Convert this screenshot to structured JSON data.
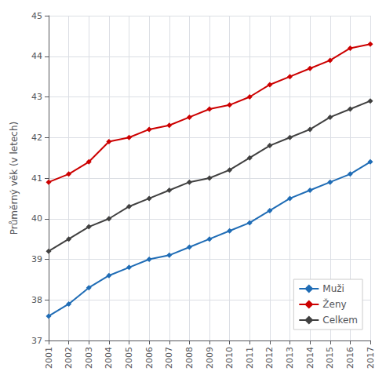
{
  "chart_data": {
    "type": "line",
    "ylabel": "Průměrný věk (v letech)",
    "x": [
      2001,
      2002,
      2003,
      2004,
      2005,
      2006,
      2007,
      2008,
      2009,
      2010,
      2011,
      2012,
      2013,
      2014,
      2015,
      2016,
      2017
    ],
    "xlim": [
      2001,
      2017
    ],
    "xticks": [
      2001,
      2002,
      2003,
      2004,
      2005,
      2006,
      2007,
      2008,
      2009,
      2010,
      2011,
      2012,
      2013,
      2014,
      2015,
      2016,
      2017
    ],
    "ylim": [
      37,
      45
    ],
    "yticks": [
      37,
      38,
      39,
      40,
      41,
      42,
      43,
      44,
      45
    ],
    "grid": true,
    "legend": "lower right",
    "marker": "diamond",
    "series": [
      {
        "name": "Muži",
        "color": "#1f6cb5",
        "values": [
          37.6,
          37.9,
          38.3,
          38.6,
          38.8,
          39.0,
          39.1,
          39.3,
          39.5,
          39.7,
          39.9,
          40.2,
          40.5,
          40.7,
          40.9,
          41.1,
          41.4
        ]
      },
      {
        "name": "Ženy",
        "color": "#cc0000",
        "values": [
          40.9,
          41.1,
          41.4,
          41.9,
          42.0,
          42.2,
          42.3,
          42.5,
          42.7,
          42.8,
          43.0,
          43.3,
          43.5,
          43.7,
          43.9,
          44.2,
          44.3
        ]
      },
      {
        "name": "Celkem",
        "color": "#404040",
        "values": [
          39.2,
          39.5,
          39.8,
          40.0,
          40.3,
          40.5,
          40.7,
          40.9,
          41.0,
          41.2,
          41.5,
          41.8,
          42.0,
          42.2,
          42.5,
          42.7,
          42.9
        ]
      }
    ]
  }
}
